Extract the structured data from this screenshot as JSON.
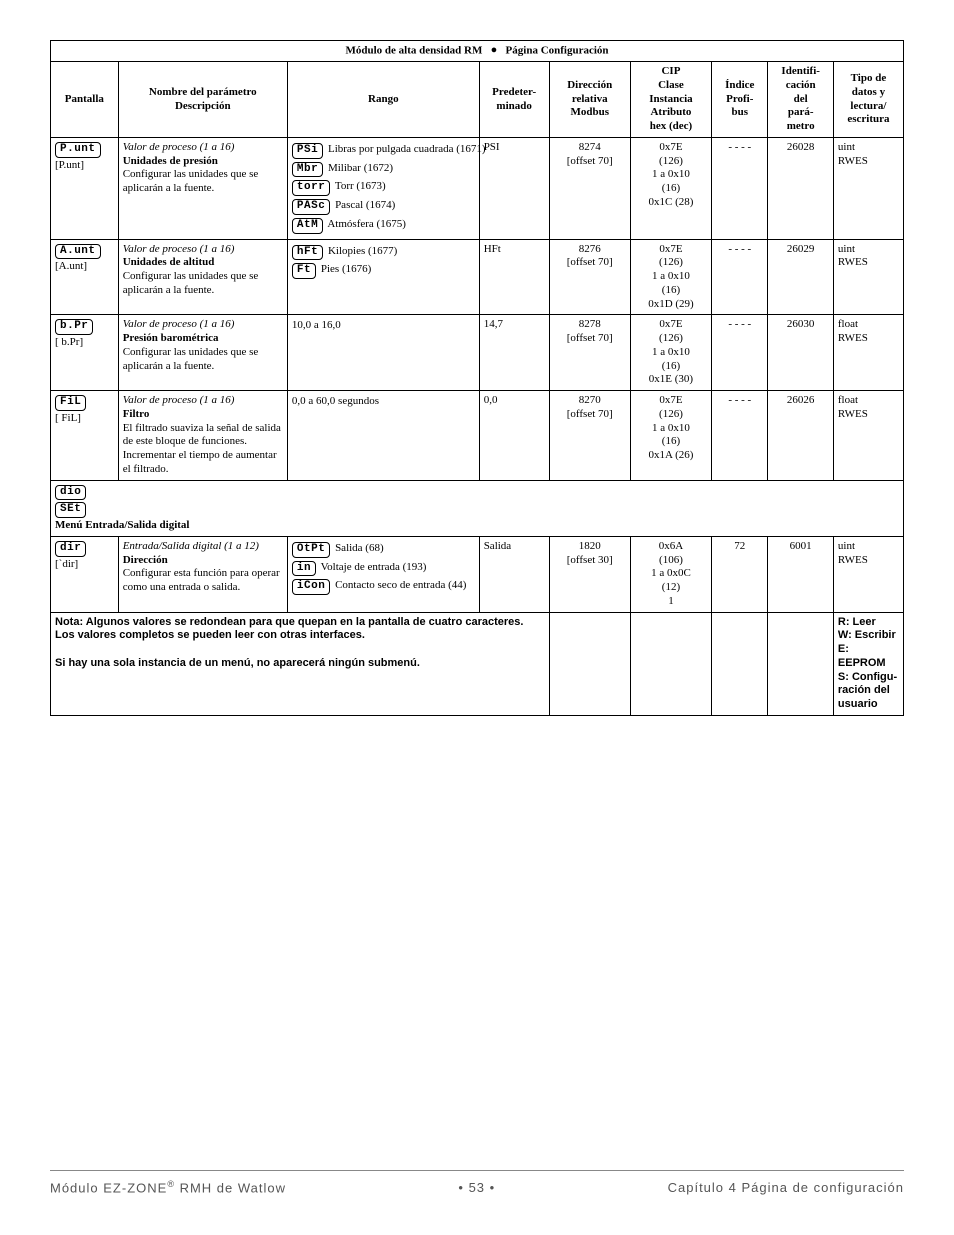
{
  "title_left": "Módulo de alta densidad RM",
  "title_right": "Página Configuración",
  "columns": {
    "pantalla": "Pantalla",
    "nombre": "Nombre del parámetro\nDescripción",
    "rango": "Rango",
    "pred": "Predeter-\nminado",
    "dir": "Dirección\nrelativa\nModbus",
    "cip": "CIP\nClase\nInstancia\nAtributo\nhex (dec)",
    "profi": "Índice\nProfi-\nbus",
    "ident": "Identifi-\ncación\ndel\npará-\nmetro",
    "tipo": "Tipo de\ndatos y\nlectura/\nescritura"
  },
  "col_widths": [
    "60",
    "150",
    "170",
    "62",
    "72",
    "72",
    "50",
    "58",
    "62"
  ],
  "rows": [
    {
      "pantalla_seg": "P.unt",
      "pantalla_sub": "[P.unt]",
      "nombre_it": "Valor de proceso (1 a 16)",
      "nombre_b": "Unidades de presión",
      "nombre_txt": "Configurar las unidades que se aplicarán a la fuente.",
      "rango": [
        {
          "seg": "PSi",
          "txt": "Libras por pulgada cuadrada (1671)"
        },
        {
          "seg": "Mbr",
          "txt": "Milibar (1672)"
        },
        {
          "seg": "torr",
          "txt": "Torr (1673)"
        },
        {
          "seg": "PASc",
          "txt": "Pascal (1674)"
        },
        {
          "seg": "AtM",
          "txt": "Atmósfera (1675)"
        }
      ],
      "pred": "PSI",
      "dir1": "8274",
      "dir2": "[offset 70]",
      "cip": [
        "0x7E",
        "(126)",
        "1 a 0x10",
        "(16)",
        "0x1C (28)"
      ],
      "profi": "- - - -",
      "ident": "26028",
      "tipo": "uint\nRWES"
    },
    {
      "pantalla_seg": "A.unt",
      "pantalla_sub": "[A.unt]",
      "nombre_it": "Valor de proceso (1 a 16)",
      "nombre_b": "Unidades de altitud",
      "nombre_txt": "Configurar las unidades que se aplicarán a la fuente.",
      "rango": [
        {
          "seg": "hFt",
          "txt": "Kilopies (1677)"
        },
        {
          "seg": "Ft",
          "txt": "Pies (1676)"
        }
      ],
      "pred": "HFt",
      "dir1": "8276",
      "dir2": "[offset 70]",
      "cip": [
        "0x7E",
        "(126)",
        "1 a 0x10",
        "(16)",
        "0x1D (29)"
      ],
      "profi": "- - - -",
      "ident": "26029",
      "tipo": "uint\nRWES"
    },
    {
      "pantalla_seg": "b.Pr",
      "pantalla_sub": "[ b.Pr]",
      "nombre_it": "Valor de proceso (1 a 16)",
      "nombre_b": "Presión barométrica",
      "nombre_txt": "Configurar las unidades que se aplicarán a la fuente.",
      "rango_plain": "10,0 a 16,0",
      "pred": "14,7",
      "dir1": "8278",
      "dir2": "[offset 70]",
      "cip": [
        "0x7E",
        "(126)",
        "1 a 0x10",
        "(16)",
        "0x1E (30)"
      ],
      "profi": "- - - -",
      "ident": "26030",
      "tipo": "float\nRWES"
    },
    {
      "pantalla_seg": "FiL",
      "pantalla_sub": "[ FiL]",
      "nombre_it": "Valor de proceso (1 a 16)",
      "nombre_b": "Filtro",
      "nombre_txt": "El filtrado suaviza la señal de salida de este bloque de funciones. Incrementar el tiempo de aumentar el filtrado.",
      "rango_plain": "0,0 a 60,0 segundos",
      "pred": "0,0",
      "dir1": "8270",
      "dir2": "[offset 70]",
      "cip": [
        "0x7E",
        "(126)",
        "1 a 0x10",
        "(16)",
        "0x1A (26)"
      ],
      "profi": "- - - -",
      "ident": "26026",
      "tipo": "float\nRWES"
    }
  ],
  "menu": {
    "seg1": "dio",
    "seg2": "SEt",
    "label": "Menú Entrada/Salida digital"
  },
  "row_dir": {
    "pantalla_seg": "dir",
    "pantalla_sub": "[`dir]",
    "nombre_it": "Entrada/Salida digital (1 a 12)",
    "nombre_b": "Dirección",
    "nombre_txt": "Configurar esta función para operar como una entrada o salida.",
    "rango": [
      {
        "seg": "OtPt",
        "txt": "Salida (68)"
      },
      {
        "seg": "in",
        "txt": "Voltaje de entrada (193)"
      },
      {
        "seg": "iCon",
        "txt": "Contacto seco de entrada (44)"
      }
    ],
    "pred": "Salida",
    "dir1": "1820",
    "dir2": "[offset 30]",
    "cip": [
      "0x6A",
      "(106)",
      "1 a 0x0C",
      "(12)",
      "1"
    ],
    "profi": "72",
    "ident": "6001",
    "tipo": "uint\nRWES"
  },
  "note": {
    "l1": "Nota: Algunos valores se redondean para que quepan en la pantalla de cuatro caracteres.",
    "l2": "Los valores completos se pueden leer con otras interfaces.",
    "l3": "Si hay una sola instancia de un menú, no aparecerá ningún submenú."
  },
  "legend": "R: Leer\nW: Escribir\nE: EEPROM\nS: Configu-\nración del\nusuario",
  "footer": {
    "left_a": "Módulo EZ-ZONE",
    "left_b": " RMH de Watlow",
    "mid": "•  53  •",
    "right": "Capítulo 4 Página de configuración"
  }
}
